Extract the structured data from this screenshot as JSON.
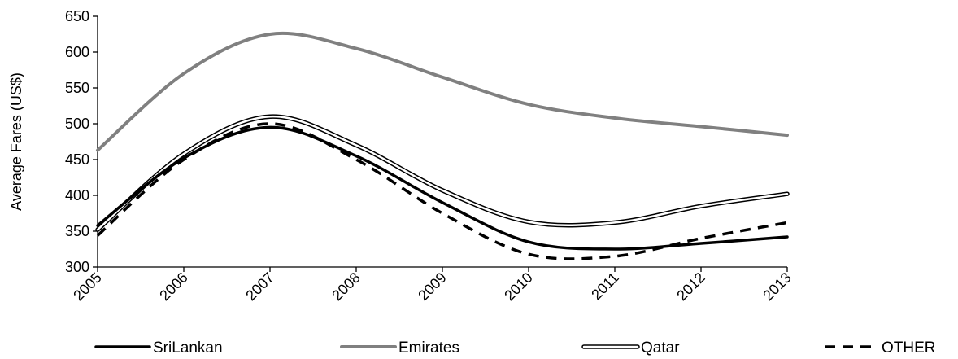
{
  "chart_data": {
    "type": "line",
    "title": "",
    "xlabel": "",
    "ylabel": "Average Fares (US$)",
    "x": [
      "2005",
      "2006",
      "2007",
      "2008",
      "2009",
      "2010",
      "2011",
      "2012",
      "2013"
    ],
    "ylim": [
      300,
      650
    ],
    "yticks": [
      300,
      350,
      400,
      450,
      500,
      550,
      600,
      650
    ],
    "grid": false,
    "legend_position": "bottom",
    "series": [
      {
        "name": "SriLankan",
        "values": [
          358,
          452,
          495,
          455,
          390,
          335,
          325,
          333,
          342
        ],
        "color": "#000000",
        "style": "solid"
      },
      {
        "name": "Emirates",
        "values": [
          463,
          570,
          625,
          605,
          565,
          527,
          508,
          496,
          484
        ],
        "color": "#808080",
        "style": "solid"
      },
      {
        "name": "Qatar",
        "values": [
          352,
          458,
          510,
          470,
          407,
          363,
          362,
          385,
          402
        ],
        "color": "#000000",
        "style": "double"
      },
      {
        "name": "OTHER",
        "values": [
          344,
          450,
          500,
          450,
          375,
          318,
          315,
          340,
          362
        ],
        "color": "#000000",
        "style": "dashed"
      }
    ]
  }
}
